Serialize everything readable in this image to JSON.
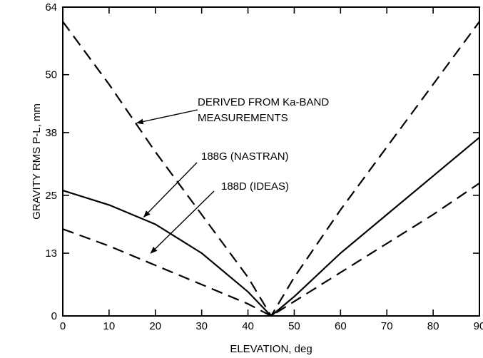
{
  "chart_data": {
    "type": "line",
    "xlabel": "ELEVATION, deg",
    "ylabel": "GRAVITY RMS P-L, mm",
    "xlim": [
      0,
      90
    ],
    "ylim": [
      0,
      64
    ],
    "x_ticks": [
      0,
      10,
      20,
      30,
      40,
      50,
      60,
      70,
      80,
      90
    ],
    "y_ticks": [
      0,
      13,
      25,
      38,
      50,
      64
    ],
    "grid": false,
    "legend": "none",
    "series": [
      {
        "name": "DERIVED FROM Ka-BAND MEASUREMENTS",
        "style": "dashed",
        "x": [
          0,
          10,
          20,
          30,
          40,
          45,
          50,
          60,
          70,
          80,
          90
        ],
        "y": [
          61,
          48,
          34,
          21,
          8,
          0,
          8,
          22,
          35,
          48,
          61
        ]
      },
      {
        "name": "188G (NASTRAN)",
        "style": "solid",
        "x": [
          0,
          10,
          20,
          30,
          40,
          45,
          50,
          60,
          70,
          80,
          90
        ],
        "y": [
          26,
          23,
          19,
          13,
          5,
          0,
          4,
          13,
          21,
          29,
          37
        ]
      },
      {
        "name": "188D (IDEAS)",
        "style": "dashed",
        "x": [
          0,
          10,
          20,
          30,
          40,
          45,
          50,
          60,
          70,
          80,
          90
        ],
        "y": [
          18,
          14.5,
          10.5,
          6.5,
          2.5,
          0,
          3,
          9,
          15,
          21,
          27.5
        ]
      }
    ],
    "annotations": [
      {
        "lines": [
          "DERIVED FROM Ka-BAND",
          "MEASUREMENTS"
        ],
        "series": 0
      },
      {
        "lines": [
          "188G (NASTRAN)"
        ],
        "series": 1
      },
      {
        "lines": [
          "188D (IDEAS)"
        ],
        "series": 2
      }
    ]
  }
}
